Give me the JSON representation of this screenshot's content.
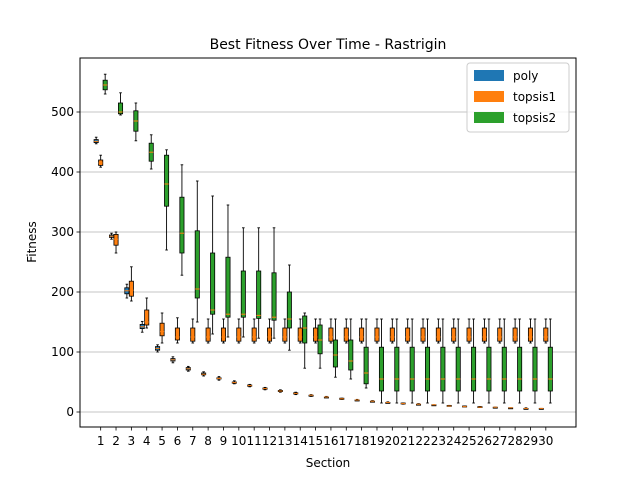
{
  "chart_data": {
    "type": "box",
    "title": "Best Fitness Over Time - Rastrigin",
    "xlabel": "Section",
    "ylabel": "Fitness",
    "ylim": [
      -25,
      590
    ],
    "yticks": [
      0,
      100,
      200,
      300,
      400,
      500
    ],
    "grid": "y",
    "legend_position": "top-right",
    "series": [
      {
        "name": "poly",
        "color": "#1f77b4",
        "boxes": [
          {
            "section": 1,
            "min": 447,
            "q1": 449,
            "median": 451,
            "q3": 454,
            "max": 458
          },
          {
            "section": 2,
            "min": 288,
            "q1": 291,
            "median": 293,
            "q3": 295,
            "max": 298
          },
          {
            "section": 3,
            "min": 190,
            "q1": 197,
            "median": 202,
            "q3": 207,
            "max": 213
          },
          {
            "section": 4,
            "min": 133,
            "q1": 139,
            "median": 142,
            "q3": 146,
            "max": 151
          },
          {
            "section": 5,
            "min": 100,
            "q1": 103,
            "median": 106,
            "q3": 109,
            "max": 112
          },
          {
            "section": 6,
            "min": 82,
            "q1": 85,
            "median": 87,
            "q3": 89,
            "max": 92
          },
          {
            "section": 7,
            "min": 68,
            "q1": 70,
            "median": 72,
            "q3": 74,
            "max": 76
          },
          {
            "section": 8,
            "min": 60,
            "q1": 62,
            "median": 63,
            "q3": 65,
            "max": 67
          },
          {
            "section": 9,
            "min": 53,
            "q1": 55,
            "median": 56,
            "q3": 57,
            "max": 59
          },
          {
            "section": 10,
            "min": 47,
            "q1": 48,
            "median": 49,
            "q3": 50,
            "max": 52
          },
          {
            "section": 11,
            "min": 42,
            "q1": 43,
            "median": 44,
            "q3": 45,
            "max": 46
          },
          {
            "section": 12,
            "min": 37,
            "q1": 38,
            "median": 39,
            "q3": 40,
            "max": 41
          },
          {
            "section": 13,
            "min": 33,
            "q1": 34,
            "median": 35,
            "q3": 36,
            "max": 37
          },
          {
            "section": 14,
            "min": 29,
            "q1": 30,
            "median": 31,
            "q3": 32,
            "max": 33
          },
          {
            "section": 15,
            "min": 26,
            "q1": 27,
            "median": 28,
            "q3": 28,
            "max": 29
          },
          {
            "section": 16,
            "min": 24,
            "q1": 24,
            "median": 25,
            "q3": 25,
            "max": 26
          },
          {
            "section": 17,
            "min": 21,
            "q1": 21,
            "median": 22,
            "q3": 23,
            "max": 23
          },
          {
            "section": 18,
            "min": 19,
            "q1": 19,
            "median": 20,
            "q3": 20,
            "max": 21
          },
          {
            "section": 19,
            "min": 17,
            "q1": 17,
            "median": 18,
            "q3": 18,
            "max": 19
          },
          {
            "section": 20,
            "min": 15,
            "q1": 15,
            "median": 16,
            "q3": 16,
            "max": 17
          },
          {
            "section": 21,
            "min": 13,
            "q1": 14,
            "median": 14,
            "q3": 15,
            "max": 15
          },
          {
            "section": 22,
            "min": 12,
            "q1": 12,
            "median": 13,
            "q3": 13,
            "max": 14
          },
          {
            "section": 23,
            "min": 11,
            "q1": 11,
            "median": 12,
            "q3": 12,
            "max": 12
          },
          {
            "section": 24,
            "min": 10,
            "q1": 10,
            "median": 10,
            "q3": 11,
            "max": 11
          },
          {
            "section": 25,
            "min": 9,
            "q1": 9,
            "median": 9,
            "q3": 10,
            "max": 10
          },
          {
            "section": 26,
            "min": 8,
            "q1": 8,
            "median": 8,
            "q3": 9,
            "max": 9
          },
          {
            "section": 27,
            "min": 7,
            "q1": 7,
            "median": 8,
            "q3": 8,
            "max": 8
          },
          {
            "section": 28,
            "min": 6,
            "q1": 7,
            "median": 7,
            "q3": 7,
            "max": 7
          },
          {
            "section": 29,
            "min": 6,
            "q1": 6,
            "median": 6,
            "q3": 6,
            "max": 7
          },
          {
            "section": 30,
            "min": 5,
            "q1": 5,
            "median": 6,
            "q3": 6,
            "max": 6
          }
        ]
      },
      {
        "name": "topsis1",
        "color": "#ff7f0e",
        "boxes": [
          {
            "section": 1,
            "min": 408,
            "q1": 411,
            "median": 415,
            "q3": 420,
            "max": 428
          },
          {
            "section": 2,
            "min": 265,
            "q1": 278,
            "median": 288,
            "q3": 296,
            "max": 300
          },
          {
            "section": 3,
            "min": 185,
            "q1": 193,
            "median": 203,
            "q3": 218,
            "max": 242
          },
          {
            "section": 4,
            "min": 140,
            "q1": 145,
            "median": 150,
            "q3": 170,
            "max": 190
          },
          {
            "section": 5,
            "min": 115,
            "q1": 127,
            "median": 134,
            "q3": 148,
            "max": 165
          },
          {
            "section": 6,
            "min": 115,
            "q1": 120,
            "median": 125,
            "q3": 140,
            "max": 157
          },
          {
            "section": 7,
            "min": 115,
            "q1": 118,
            "median": 125,
            "q3": 140,
            "max": 155
          },
          {
            "section": 8,
            "min": 115,
            "q1": 118,
            "median": 125,
            "q3": 140,
            "max": 155
          },
          {
            "section": 9,
            "min": 115,
            "q1": 118,
            "median": 125,
            "q3": 140,
            "max": 155
          },
          {
            "section": 10,
            "min": 115,
            "q1": 118,
            "median": 125,
            "q3": 140,
            "max": 155
          },
          {
            "section": 11,
            "min": 115,
            "q1": 118,
            "median": 125,
            "q3": 140,
            "max": 155
          },
          {
            "section": 12,
            "min": 115,
            "q1": 118,
            "median": 125,
            "q3": 140,
            "max": 155
          },
          {
            "section": 13,
            "min": 115,
            "q1": 118,
            "median": 125,
            "q3": 140,
            "max": 155
          },
          {
            "section": 14,
            "min": 115,
            "q1": 118,
            "median": 125,
            "q3": 140,
            "max": 155
          },
          {
            "section": 15,
            "min": 115,
            "q1": 118,
            "median": 125,
            "q3": 140,
            "max": 155
          },
          {
            "section": 16,
            "min": 115,
            "q1": 118,
            "median": 125,
            "q3": 140,
            "max": 155
          },
          {
            "section": 17,
            "min": 115,
            "q1": 118,
            "median": 125,
            "q3": 140,
            "max": 155
          },
          {
            "section": 18,
            "min": 115,
            "q1": 118,
            "median": 125,
            "q3": 140,
            "max": 155
          },
          {
            "section": 19,
            "min": 115,
            "q1": 118,
            "median": 125,
            "q3": 140,
            "max": 155
          },
          {
            "section": 20,
            "min": 115,
            "q1": 118,
            "median": 125,
            "q3": 140,
            "max": 155
          },
          {
            "section": 21,
            "min": 115,
            "q1": 118,
            "median": 125,
            "q3": 140,
            "max": 155
          },
          {
            "section": 22,
            "min": 115,
            "q1": 118,
            "median": 125,
            "q3": 140,
            "max": 155
          },
          {
            "section": 23,
            "min": 115,
            "q1": 118,
            "median": 125,
            "q3": 140,
            "max": 155
          },
          {
            "section": 24,
            "min": 115,
            "q1": 118,
            "median": 125,
            "q3": 140,
            "max": 155
          },
          {
            "section": 25,
            "min": 115,
            "q1": 118,
            "median": 125,
            "q3": 140,
            "max": 155
          },
          {
            "section": 26,
            "min": 115,
            "q1": 118,
            "median": 125,
            "q3": 140,
            "max": 155
          },
          {
            "section": 27,
            "min": 115,
            "q1": 118,
            "median": 125,
            "q3": 140,
            "max": 155
          },
          {
            "section": 28,
            "min": 115,
            "q1": 118,
            "median": 125,
            "q3": 140,
            "max": 155
          },
          {
            "section": 29,
            "min": 115,
            "q1": 118,
            "median": 125,
            "q3": 140,
            "max": 155
          },
          {
            "section": 30,
            "min": 115,
            "q1": 118,
            "median": 125,
            "q3": 140,
            "max": 155
          }
        ]
      },
      {
        "name": "topsis2",
        "color": "#2ca02c",
        "boxes": [
          {
            "section": 1,
            "min": 530,
            "q1": 537,
            "median": 545,
            "q3": 553,
            "max": 563
          },
          {
            "section": 2,
            "min": 495,
            "q1": 497,
            "median": 500,
            "q3": 515,
            "max": 532
          },
          {
            "section": 3,
            "min": 452,
            "q1": 468,
            "median": 485,
            "q3": 502,
            "max": 515
          },
          {
            "section": 4,
            "min": 405,
            "q1": 418,
            "median": 433,
            "q3": 448,
            "max": 462
          },
          {
            "section": 5,
            "min": 270,
            "q1": 343,
            "median": 380,
            "q3": 428,
            "max": 437
          },
          {
            "section": 6,
            "min": 228,
            "q1": 265,
            "median": 298,
            "q3": 358,
            "max": 412
          },
          {
            "section": 7,
            "min": 150,
            "q1": 190,
            "median": 205,
            "q3": 302,
            "max": 385
          },
          {
            "section": 8,
            "min": 130,
            "q1": 163,
            "median": 170,
            "q3": 265,
            "max": 360
          },
          {
            "section": 9,
            "min": 125,
            "q1": 158,
            "median": 163,
            "q3": 258,
            "max": 345
          },
          {
            "section": 10,
            "min": 125,
            "q1": 158,
            "median": 163,
            "q3": 235,
            "max": 307
          },
          {
            "section": 11,
            "min": 123,
            "q1": 156,
            "median": 161,
            "q3": 235,
            "max": 307
          },
          {
            "section": 12,
            "min": 123,
            "q1": 153,
            "median": 158,
            "q3": 232,
            "max": 307
          },
          {
            "section": 13,
            "min": 103,
            "q1": 140,
            "median": 155,
            "q3": 200,
            "max": 245
          },
          {
            "section": 14,
            "min": 73,
            "q1": 115,
            "median": 140,
            "q3": 160,
            "max": 165
          },
          {
            "section": 15,
            "min": 73,
            "q1": 97,
            "median": 120,
            "q3": 145,
            "max": 155
          },
          {
            "section": 16,
            "min": 58,
            "q1": 75,
            "median": 95,
            "q3": 120,
            "max": 155
          },
          {
            "section": 17,
            "min": 55,
            "q1": 70,
            "median": 85,
            "q3": 120,
            "max": 155
          },
          {
            "section": 18,
            "min": 40,
            "q1": 47,
            "median": 65,
            "q3": 108,
            "max": 155
          },
          {
            "section": 19,
            "min": 15,
            "q1": 35,
            "median": 55,
            "q3": 108,
            "max": 155
          },
          {
            "section": 20,
            "min": 15,
            "q1": 35,
            "median": 55,
            "q3": 108,
            "max": 155
          },
          {
            "section": 21,
            "min": 15,
            "q1": 35,
            "median": 55,
            "q3": 108,
            "max": 155
          },
          {
            "section": 22,
            "min": 15,
            "q1": 35,
            "median": 55,
            "q3": 108,
            "max": 155
          },
          {
            "section": 23,
            "min": 15,
            "q1": 35,
            "median": 55,
            "q3": 108,
            "max": 155
          },
          {
            "section": 24,
            "min": 15,
            "q1": 35,
            "median": 55,
            "q3": 108,
            "max": 155
          },
          {
            "section": 25,
            "min": 15,
            "q1": 35,
            "median": 55,
            "q3": 108,
            "max": 155
          },
          {
            "section": 26,
            "min": 15,
            "q1": 35,
            "median": 55,
            "q3": 108,
            "max": 155
          },
          {
            "section": 27,
            "min": 15,
            "q1": 35,
            "median": 55,
            "q3": 108,
            "max": 155
          },
          {
            "section": 28,
            "min": 15,
            "q1": 35,
            "median": 55,
            "q3": 108,
            "max": 155
          },
          {
            "section": 29,
            "min": 15,
            "q1": 35,
            "median": 55,
            "q3": 108,
            "max": 155
          },
          {
            "section": 30,
            "min": 15,
            "q1": 35,
            "median": 55,
            "q3": 108,
            "max": 155
          }
        ]
      }
    ]
  }
}
